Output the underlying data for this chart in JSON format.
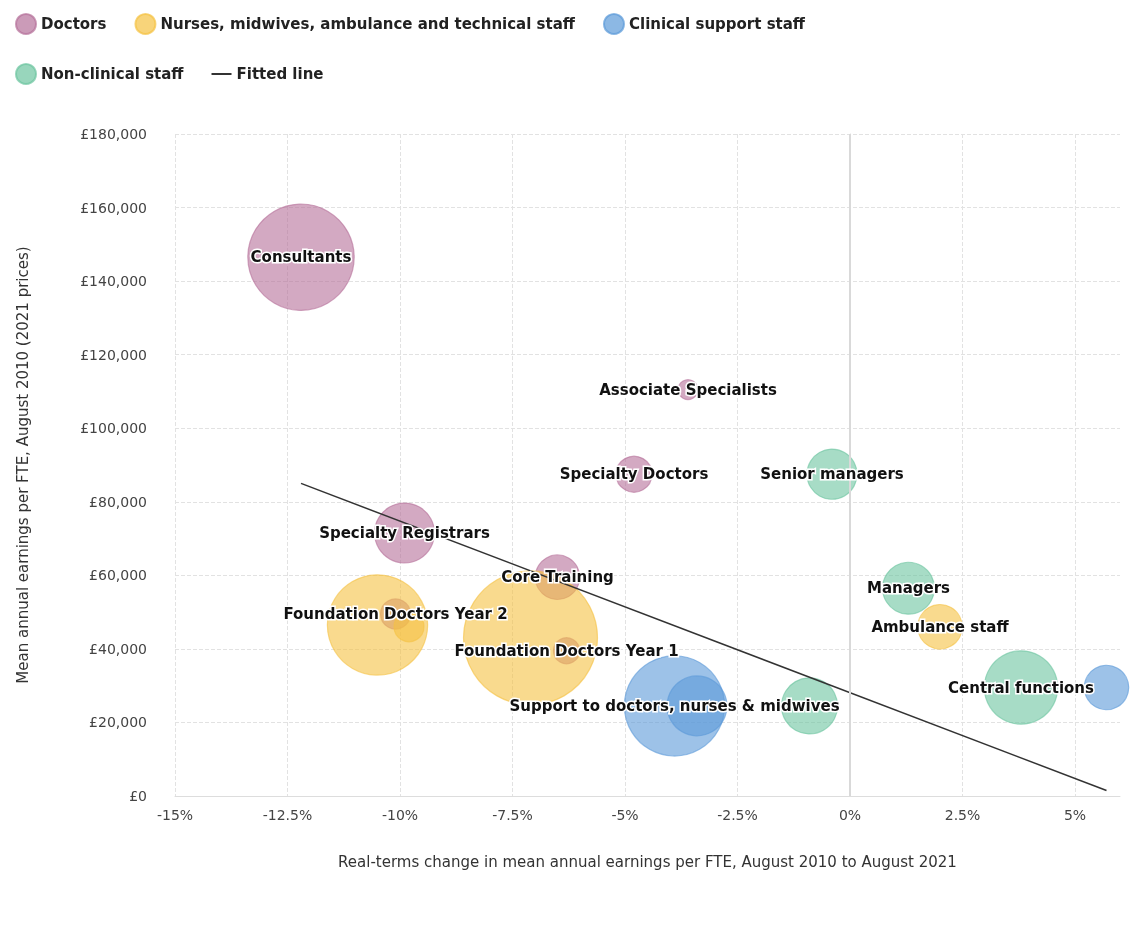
{
  "chart_data": {
    "type": "bubble",
    "xlabel": "Real-terms change in mean annual earnings per FTE, August 2010 to August 2021",
    "ylabel": "Mean annual earnings per FTE, August 2010 (2021 prices)",
    "xlim": [
      -15,
      6
    ],
    "ylim": [
      0,
      180000
    ],
    "xticks": [
      {
        "value": -15,
        "label": "-15%"
      },
      {
        "value": -12.5,
        "label": "-12.5%"
      },
      {
        "value": -10,
        "label": "-10%"
      },
      {
        "value": -7.5,
        "label": "-7.5%"
      },
      {
        "value": -5,
        "label": "-5%"
      },
      {
        "value": -2.5,
        "label": "-2.5%"
      },
      {
        "value": 0,
        "label": "0%"
      },
      {
        "value": 2.5,
        "label": "2.5%"
      },
      {
        "value": 5,
        "label": "5%"
      }
    ],
    "yticks": [
      {
        "value": 0,
        "label": "£0"
      },
      {
        "value": 20000,
        "label": "£20,000"
      },
      {
        "value": 40000,
        "label": "£40,000"
      },
      {
        "value": 60000,
        "label": "£60,000"
      },
      {
        "value": 80000,
        "label": "£80,000"
      },
      {
        "value": 100000,
        "label": "£100,000"
      },
      {
        "value": 120000,
        "label": "£120,000"
      },
      {
        "value": 140000,
        "label": "£140,000"
      },
      {
        "value": 160000,
        "label": "£160,000"
      },
      {
        "value": 180000,
        "label": "£180,000"
      }
    ],
    "grid": true,
    "legend": "top left",
    "ref_lines": [
      {
        "axis": "x",
        "value": 0,
        "color": "#d9d9d9",
        "line_style": "solid"
      }
    ],
    "series": [
      {
        "name": "Doctors",
        "color": "#b5709a",
        "x": [
          -12.2,
          -3.6,
          -4.8,
          -9.9,
          -6.5,
          -10.1,
          -6.3
        ],
        "values": [
          146500,
          110500,
          87500,
          71500,
          59500,
          49500,
          39500
        ],
        "sizes": [
          0.63,
          0.022,
          0.072,
          0.2,
          0.11,
          0.05,
          0.038
        ]
      },
      {
        "name": "Nurses, midwives, ambulance and technical staff",
        "color": "#f5c242",
        "x": [
          -10.5,
          -9.8,
          -7.1,
          2.0
        ],
        "values": [
          46500,
          46000,
          43000,
          46000
        ],
        "sizes": [
          0.56,
          0.05,
          1,
          0.11
        ]
      },
      {
        "name": "Clinical support staff",
        "color": "#5b9ad8",
        "x": [
          -3.9,
          -3.4,
          5.7
        ],
        "values": [
          24500,
          24500,
          29500
        ],
        "sizes": [
          0.56,
          0.2,
          0.11
        ]
      },
      {
        "name": "Non-clinical staff",
        "color": "#6cc4a0",
        "x": [
          -0.4,
          1.3,
          -0.9,
          3.8
        ],
        "values": [
          87500,
          56500,
          24500,
          29500
        ],
        "sizes": [
          0.14,
          0.15,
          0.175,
          0.3
        ]
      },
      {
        "name": "Fitted line",
        "type": "line",
        "color": "#333333",
        "marker": "none",
        "line_style": "solid",
        "x": [
          -12.2,
          5.7
        ],
        "values": [
          85000,
          1500
        ]
      }
    ],
    "annotations": [
      {
        "text": "Consultants",
        "x": -12.2,
        "y": 146500
      },
      {
        "text": "Associate Specialists",
        "x": -3.6,
        "y": 110500
      },
      {
        "text": "Specialty Doctors",
        "x": -4.8,
        "y": 87500
      },
      {
        "text": "Specialty Registrars",
        "x": -9.9,
        "y": 71500
      },
      {
        "text": "Core Training",
        "x": -6.5,
        "y": 59500
      },
      {
        "text": "Foundation Doctors Year 2",
        "x": -10.1,
        "y": 49500
      },
      {
        "text": "Foundation Doctors Year 1",
        "x": -6.3,
        "y": 39500
      },
      {
        "text": "Support to doctors, nurses & midwives",
        "x": -3.9,
        "y": 24500
      },
      {
        "text": "Senior managers",
        "x": -0.4,
        "y": 87500
      },
      {
        "text": "Managers",
        "x": 1.3,
        "y": 56500
      },
      {
        "text": "Ambulance staff",
        "x": 2.0,
        "y": 46000
      },
      {
        "text": "Central functions",
        "x": 3.8,
        "y": 29500
      }
    ]
  }
}
